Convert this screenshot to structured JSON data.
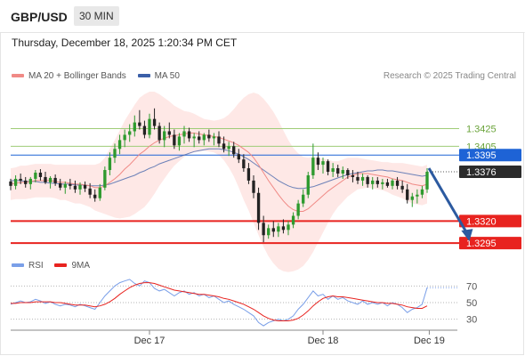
{
  "header": {
    "pair": "GBP/USD",
    "timeframe": "30 MIN"
  },
  "timestamp": "Thursday, December 18, 2025 1:20:34 PM CET",
  "legend": {
    "ma20_label": "MA 20 + Bollinger Bands",
    "ma50_label": "MA 50",
    "credit": "Research © 2025 Trading Central"
  },
  "rsi_legend": {
    "rsi_label": "RSI",
    "ma_label": "9MA"
  },
  "colors": {
    "ma20": "#f08a86",
    "ma50": "#3b5fa8",
    "band": "#fde0dd",
    "up": "#2e9a2e",
    "down": "#222222",
    "support": "#e8231f",
    "resistance_green": "#9fcc77",
    "pivot_blue": "#1e63d6",
    "current": "#2b2b2b",
    "rsi_line": "#7a9fe8",
    "rsi_ma": "#e8231f",
    "arrow": "#2c5aa0"
  },
  "chart_data": {
    "type": "candlestick",
    "price_levels": [
      {
        "value": 1.3425,
        "label": "1.3425",
        "kind": "resistance"
      },
      {
        "value": 1.3405,
        "label": "1.3405",
        "kind": "resistance"
      },
      {
        "value": 1.3395,
        "label": "1.3395",
        "kind": "pivot"
      },
      {
        "value": 1.3376,
        "label": "1.3376",
        "kind": "current"
      },
      {
        "value": 1.332,
        "label": "1.3320",
        "kind": "support"
      },
      {
        "value": 1.3295,
        "label": "1.3295",
        "kind": "support"
      }
    ],
    "price_range": [
      1.328,
      1.347
    ],
    "x_labels": [
      "Dec 17",
      "Dec 18",
      "Dec 19"
    ],
    "candles": [
      [
        1.3365,
        1.3368,
        1.3355,
        1.336
      ],
      [
        1.336,
        1.3372,
        1.3356,
        1.3368
      ],
      [
        1.3368,
        1.3374,
        1.3362,
        1.3366
      ],
      [
        1.3366,
        1.337,
        1.3358,
        1.3362
      ],
      [
        1.3362,
        1.337,
        1.3356,
        1.3368
      ],
      [
        1.3368,
        1.3378,
        1.3364,
        1.3375
      ],
      [
        1.3375,
        1.3379,
        1.3366,
        1.337
      ],
      [
        1.337,
        1.3376,
        1.3362,
        1.3364
      ],
      [
        1.3364,
        1.3371,
        1.3357,
        1.3369
      ],
      [
        1.3369,
        1.3373,
        1.336,
        1.3363
      ],
      [
        1.3363,
        1.3368,
        1.3355,
        1.3358
      ],
      [
        1.3358,
        1.3365,
        1.3351,
        1.3362
      ],
      [
        1.3362,
        1.3368,
        1.3356,
        1.336
      ],
      [
        1.336,
        1.3366,
        1.3352,
        1.3356
      ],
      [
        1.3356,
        1.3364,
        1.335,
        1.3361
      ],
      [
        1.3361,
        1.3365,
        1.3353,
        1.3357
      ],
      [
        1.3357,
        1.3363,
        1.3346,
        1.335
      ],
      [
        1.335,
        1.3356,
        1.3342,
        1.3346
      ],
      [
        1.3346,
        1.3362,
        1.3343,
        1.3358
      ],
      [
        1.3358,
        1.3382,
        1.3355,
        1.3378
      ],
      [
        1.3378,
        1.3398,
        1.3372,
        1.3392
      ],
      [
        1.3392,
        1.3408,
        1.3386,
        1.3402
      ],
      [
        1.3402,
        1.3418,
        1.3396,
        1.3412
      ],
      [
        1.3412,
        1.3424,
        1.3404,
        1.3418
      ],
      [
        1.3418,
        1.343,
        1.341,
        1.3422
      ],
      [
        1.3422,
        1.344,
        1.3416,
        1.3432
      ],
      [
        1.3432,
        1.3446,
        1.3424,
        1.3428
      ],
      [
        1.3428,
        1.3434,
        1.3414,
        1.3418
      ],
      [
        1.3418,
        1.3442,
        1.3414,
        1.3436
      ],
      [
        1.3436,
        1.3448,
        1.3424,
        1.3428
      ],
      [
        1.3428,
        1.3432,
        1.3408,
        1.3412
      ],
      [
        1.3412,
        1.3428,
        1.3404,
        1.3422
      ],
      [
        1.3422,
        1.3432,
        1.3414,
        1.3418
      ],
      [
        1.3418,
        1.3424,
        1.3402,
        1.3406
      ],
      [
        1.3406,
        1.342,
        1.34,
        1.3416
      ],
      [
        1.3416,
        1.3428,
        1.3408,
        1.3422
      ],
      [
        1.3422,
        1.3426,
        1.341,
        1.3414
      ],
      [
        1.3414,
        1.342,
        1.3404,
        1.3416
      ],
      [
        1.3416,
        1.3422,
        1.3408,
        1.3412
      ],
      [
        1.3412,
        1.342,
        1.3406,
        1.3418
      ],
      [
        1.3418,
        1.3424,
        1.341,
        1.3414
      ],
      [
        1.3414,
        1.342,
        1.3406,
        1.3416
      ],
      [
        1.3416,
        1.3422,
        1.3404,
        1.3408
      ],
      [
        1.3408,
        1.3416,
        1.3398,
        1.3402
      ],
      [
        1.3402,
        1.341,
        1.3394,
        1.3405
      ],
      [
        1.3405,
        1.341,
        1.3392,
        1.3396
      ],
      [
        1.3396,
        1.3402,
        1.3386,
        1.339
      ],
      [
        1.339,
        1.3396,
        1.3376,
        1.338
      ],
      [
        1.338,
        1.3386,
        1.3362,
        1.3366
      ],
      [
        1.3366,
        1.3372,
        1.3346,
        1.3352
      ],
      [
        1.3352,
        1.3358,
        1.331,
        1.3318
      ],
      [
        1.3318,
        1.3326,
        1.3296,
        1.3304
      ],
      [
        1.3304,
        1.3316,
        1.33,
        1.3312
      ],
      [
        1.3312,
        1.332,
        1.3302,
        1.3308
      ],
      [
        1.3308,
        1.3318,
        1.3302,
        1.3314
      ],
      [
        1.3314,
        1.3322,
        1.3306,
        1.331
      ],
      [
        1.331,
        1.332,
        1.3304,
        1.3316
      ],
      [
        1.3316,
        1.333,
        1.3312,
        1.3326
      ],
      [
        1.3326,
        1.3344,
        1.3322,
        1.334
      ],
      [
        1.334,
        1.3356,
        1.3336,
        1.335
      ],
      [
        1.335,
        1.3376,
        1.3346,
        1.3372
      ],
      [
        1.3372,
        1.3408,
        1.3368,
        1.3392
      ],
      [
        1.3392,
        1.3398,
        1.3378,
        1.3384
      ],
      [
        1.3384,
        1.3392,
        1.3374,
        1.3388
      ],
      [
        1.3388,
        1.339,
        1.3372,
        1.3376
      ],
      [
        1.3376,
        1.3386,
        1.337,
        1.338
      ],
      [
        1.338,
        1.3384,
        1.337,
        1.3374
      ],
      [
        1.3374,
        1.3382,
        1.3368,
        1.3378
      ],
      [
        1.3378,
        1.338,
        1.3368,
        1.3372
      ],
      [
        1.3372,
        1.3378,
        1.3364,
        1.337
      ],
      [
        1.337,
        1.3376,
        1.3362,
        1.3366
      ],
      [
        1.3366,
        1.3374,
        1.336,
        1.337
      ],
      [
        1.337,
        1.3372,
        1.3358,
        1.3362
      ],
      [
        1.3362,
        1.337,
        1.3356,
        1.3366
      ],
      [
        1.3366,
        1.337,
        1.3358,
        1.3362
      ],
      [
        1.3362,
        1.3368,
        1.3356,
        1.3364
      ],
      [
        1.3364,
        1.3368,
        1.3358,
        1.336
      ],
      [
        1.336,
        1.3368,
        1.3356,
        1.3366
      ],
      [
        1.3366,
        1.337,
        1.3356,
        1.336
      ],
      [
        1.336,
        1.3366,
        1.3352,
        1.3356
      ],
      [
        1.3356,
        1.3362,
        1.334,
        1.3344
      ],
      [
        1.3344,
        1.3352,
        1.3336,
        1.3348
      ],
      [
        1.3348,
        1.3356,
        1.334,
        1.335
      ],
      [
        1.335,
        1.336,
        1.3346,
        1.3356
      ],
      [
        1.3356,
        1.338,
        1.3352,
        1.3376
      ]
    ],
    "ma20": [
      1.3362,
      1.3363,
      1.3364,
      1.3364,
      1.3365,
      1.3366,
      1.3366,
      1.3366,
      1.3366,
      1.3365,
      1.3364,
      1.3364,
      1.3363,
      1.3362,
      1.3362,
      1.3361,
      1.336,
      1.3358,
      1.3358,
      1.336,
      1.3364,
      1.3368,
      1.3373,
      1.3379,
      1.3384,
      1.339,
      1.3396,
      1.34,
      1.3405,
      1.3409,
      1.3412,
      1.3414,
      1.3416,
      1.3417,
      1.3418,
      1.3419,
      1.342,
      1.342,
      1.3419,
      1.3418,
      1.3417,
      1.3416,
      1.3415,
      1.3413,
      1.3411,
      1.3409,
      1.3406,
      1.3402,
      1.3398,
      1.3392,
      1.3384,
      1.3375,
      1.3366,
      1.3358,
      1.335,
      1.3343,
      1.3337,
      1.3333,
      1.3331,
      1.3331,
      1.3334,
      1.3339,
      1.3344,
      1.3349,
      1.3354,
      1.3358,
      1.3362,
      1.3366,
      1.337,
      1.3372,
      1.3374,
      1.3374,
      1.3374,
      1.3373,
      1.3372,
      1.3371,
      1.337,
      1.3368,
      1.3367,
      1.3366,
      1.3364,
      1.3362,
      1.3361,
      1.336,
      1.3362
    ],
    "ma50": [
      1.3366,
      1.3366,
      1.3366,
      1.3365,
      1.3365,
      1.3365,
      1.3364,
      1.3364,
      1.3363,
      1.3363,
      1.3362,
      1.3362,
      1.3362,
      1.3361,
      1.3361,
      1.3361,
      1.336,
      1.336,
      1.336,
      1.3361,
      1.3362,
      1.3364,
      1.3366,
      1.3368,
      1.337,
      1.3372,
      1.3375,
      1.3377,
      1.338,
      1.3382,
      1.3385,
      1.3387,
      1.3389,
      1.3391,
      1.3393,
      1.3395,
      1.3397,
      1.3399,
      1.34,
      1.3401,
      1.3402,
      1.3402,
      1.3402,
      1.3401,
      1.34,
      1.3398,
      1.3396,
      1.3393,
      1.339,
      1.3386,
      1.3382,
      1.3378,
      1.3374,
      1.337,
      1.3366,
      1.3363,
      1.336,
      1.3358,
      1.3357,
      1.3357,
      1.3358,
      1.3359,
      1.3361,
      1.3363,
      1.3365,
      1.3367,
      1.3369,
      1.3371,
      1.3373,
      1.3374,
      1.3375,
      1.3376,
      1.3377,
      1.3377,
      1.3378,
      1.3378,
      1.3377,
      1.3377,
      1.3376,
      1.3375,
      1.3374,
      1.3373,
      1.3372,
      1.3371,
      1.3372
    ],
    "band_width": [
      0.0018,
      0.0018,
      0.0019,
      0.0019,
      0.0019,
      0.0019,
      0.0019,
      0.0019,
      0.0019,
      0.0019,
      0.002,
      0.002,
      0.0021,
      0.0022,
      0.0022,
      0.0023,
      0.0024,
      0.0026,
      0.0028,
      0.0032,
      0.0038,
      0.0044,
      0.005,
      0.0055,
      0.0059,
      0.0062,
      0.0064,
      0.0064,
      0.0062,
      0.0058,
      0.0052,
      0.0046,
      0.004,
      0.0034,
      0.003,
      0.0026,
      0.0024,
      0.0022,
      0.002,
      0.0018,
      0.0018,
      0.0018,
      0.002,
      0.0024,
      0.003,
      0.0038,
      0.0048,
      0.0058,
      0.0066,
      0.0074,
      0.008,
      0.0084,
      0.0086,
      0.0086,
      0.0084,
      0.008,
      0.0075,
      0.007,
      0.0066,
      0.0062,
      0.0058,
      0.0054,
      0.0048,
      0.0042,
      0.0036,
      0.003,
      0.0026,
      0.0024,
      0.0022,
      0.002,
      0.0018,
      0.0017,
      0.0016,
      0.0016,
      0.0016,
      0.0016,
      0.0017,
      0.0018,
      0.0019,
      0.002,
      0.0021,
      0.0022,
      0.0022,
      0.0022,
      0.0022
    ],
    "projection": {
      "from": 1.338,
      "to": 1.3295,
      "bars_ahead": 6
    },
    "rsi": {
      "levels": [
        70,
        50,
        30
      ],
      "values": [
        48,
        50,
        52,
        50,
        51,
        54,
        52,
        49,
        51,
        48,
        46,
        48,
        47,
        45,
        48,
        46,
        44,
        42,
        50,
        58,
        64,
        70,
        74,
        76,
        78,
        73,
        70,
        76,
        74,
        67,
        64,
        66,
        62,
        58,
        62,
        64,
        60,
        62,
        58,
        60,
        56,
        58,
        54,
        50,
        52,
        48,
        45,
        42,
        38,
        34,
        26,
        22,
        26,
        28,
        30,
        28,
        30,
        34,
        42,
        48,
        56,
        64,
        58,
        60,
        54,
        58,
        54,
        56,
        52,
        50,
        48,
        52,
        48,
        50,
        48,
        50,
        46,
        50,
        48,
        44,
        38,
        42,
        44,
        48,
        68
      ],
      "ma": [
        49,
        49,
        50,
        50,
        50,
        51,
        51,
        51,
        51,
        50,
        50,
        49,
        48,
        47,
        47,
        47,
        46,
        45,
        46,
        48,
        51,
        55,
        60,
        64,
        68,
        71,
        73,
        74,
        74,
        73,
        71,
        69,
        67,
        65,
        64,
        63,
        62,
        61,
        60,
        60,
        59,
        58,
        57,
        55,
        54,
        52,
        50,
        48,
        45,
        42,
        38,
        34,
        31,
        29,
        28,
        28,
        28,
        29,
        31,
        35,
        40,
        46,
        51,
        55,
        57,
        58,
        57,
        57,
        56,
        55,
        54,
        53,
        52,
        51,
        50,
        50,
        49,
        49,
        48,
        47,
        45,
        44,
        43,
        43,
        46
      ]
    }
  }
}
